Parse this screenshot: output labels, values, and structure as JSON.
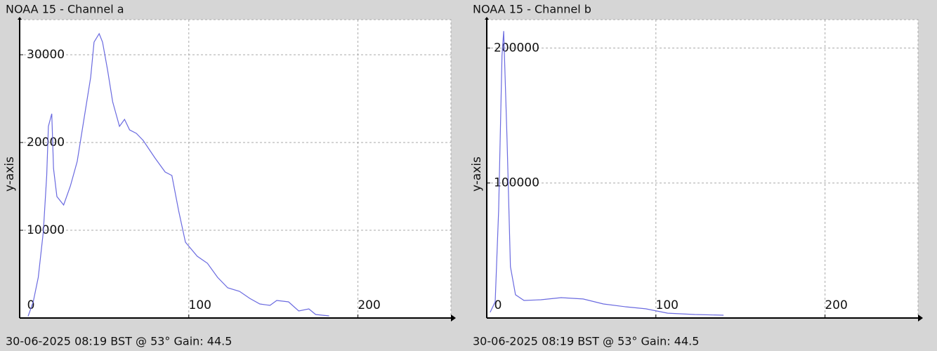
{
  "chart_data": [
    {
      "type": "line",
      "title": "NOAA 15 - Channel a",
      "ylabel": "y-axis",
      "caption": "30-06-2025 08:19 BST @ 53° Gain: 44.5",
      "color": "#6a6ae0",
      "x": [
        5,
        8,
        11,
        14,
        16,
        17,
        19,
        20,
        22,
        26,
        30,
        34,
        38,
        42,
        44,
        47,
        49,
        52,
        55,
        59,
        62,
        65,
        69,
        73,
        80,
        86,
        90,
        94,
        98,
        105,
        111,
        117,
        123,
        130,
        136,
        142,
        148,
        152,
        159,
        165,
        171,
        175,
        183
      ],
      "values": [
        200,
        1840,
        4640,
        9840,
        16240,
        21840,
        23280,
        17040,
        13840,
        12880,
        15040,
        17840,
        22640,
        27440,
        31440,
        32400,
        31440,
        28240,
        24640,
        21840,
        22640,
        21440,
        21040,
        20240,
        18240,
        16640,
        16240,
        12240,
        8640,
        7040,
        6240,
        4640,
        3440,
        3040,
        2240,
        1600,
        1440,
        2000,
        1840,
        800,
        1040,
        400,
        240
      ],
      "xlim": [
        0,
        255
      ],
      "ylim": [
        0,
        34000
      ],
      "xticks": [
        0,
        100,
        200
      ],
      "yticks": [
        10000,
        20000,
        30000
      ],
      "grid": true
    },
    {
      "type": "line",
      "title": "NOAA 15 - Channel b",
      "ylabel": "y-axis",
      "caption": "30-06-2025 08:19 BST @ 53° Gain: 44.5",
      "color": "#6a6ae0",
      "x": [
        2,
        5,
        7,
        9,
        10,
        12,
        14,
        17,
        22,
        32,
        44,
        57,
        69,
        82,
        94,
        107,
        123,
        140
      ],
      "values": [
        4200,
        12000,
        79700,
        194300,
        212500,
        131800,
        38000,
        17200,
        13000,
        13500,
        15100,
        14100,
        10400,
        8300,
        6800,
        3600,
        2600,
        2100
      ],
      "xlim": [
        0,
        255
      ],
      "ylim": [
        0,
        221000
      ],
      "xticks": [
        0,
        100,
        200
      ],
      "yticks": [
        100000,
        200000
      ],
      "grid": true
    }
  ]
}
